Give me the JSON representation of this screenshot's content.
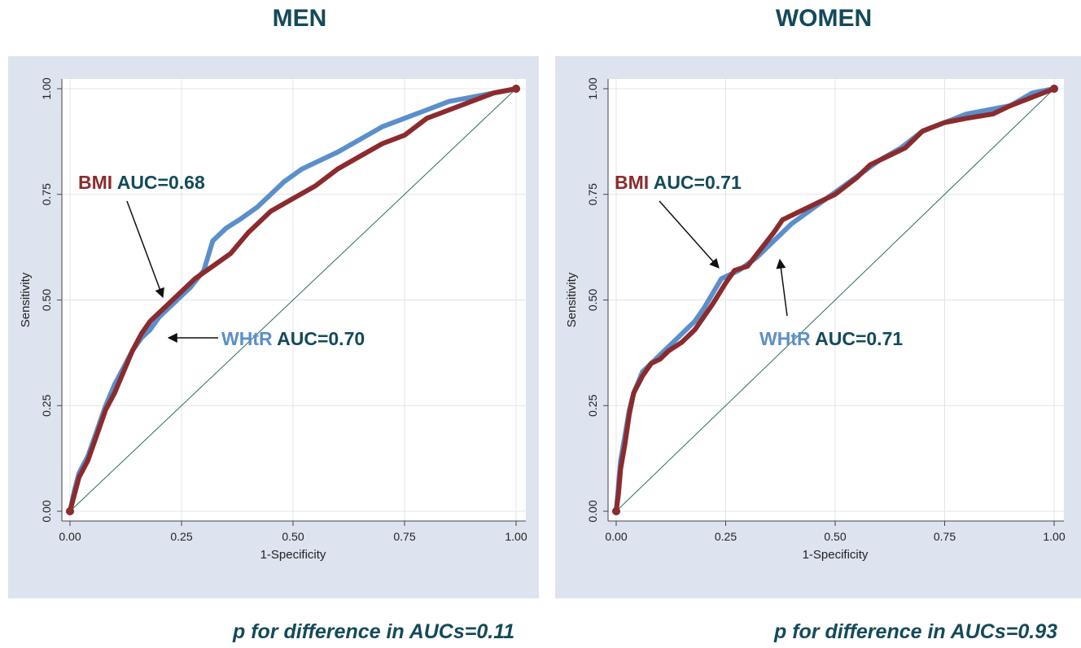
{
  "colors": {
    "bmi": "#8b2b2e",
    "whtr": "#5b8fcb",
    "auc_text": "#134a5a",
    "title": "#134a5a",
    "panel_bg": "#dde3ef",
    "reference": "#2e6b5e"
  },
  "chart_data": [
    {
      "type": "line",
      "title": "MEN",
      "xlabel": "1-Specificity",
      "ylabel": "Sensitivity",
      "xlim": [
        0,
        1
      ],
      "ylim": [
        0,
        1
      ],
      "xticks": [
        "0.00",
        "0.25",
        "0.50",
        "0.75",
        "1.00"
      ],
      "yticks": [
        "0.00",
        "0.25",
        "0.50",
        "0.75",
        "1.00"
      ],
      "grid": true,
      "reference_line": [
        [
          0,
          0
        ],
        [
          1,
          1
        ]
      ],
      "annotations": {
        "bmi": {
          "name": "BMI",
          "text": "AUC=0.68"
        },
        "whtr": {
          "name": "WHtR",
          "text": "AUC=0.70"
        }
      },
      "note": "p for difference in AUCs=0.11",
      "series": [
        {
          "name": "WHtR",
          "color": "#5b8fcb",
          "points": [
            [
              0,
              0
            ],
            [
              0.01,
              0.05
            ],
            [
              0.02,
              0.09
            ],
            [
              0.04,
              0.13
            ],
            [
              0.05,
              0.16
            ],
            [
              0.06,
              0.19
            ],
            [
              0.08,
              0.25
            ],
            [
              0.1,
              0.3
            ],
            [
              0.12,
              0.34
            ],
            [
              0.14,
              0.38
            ],
            [
              0.16,
              0.41
            ],
            [
              0.18,
              0.43
            ],
            [
              0.2,
              0.46
            ],
            [
              0.22,
              0.48
            ],
            [
              0.25,
              0.51
            ],
            [
              0.27,
              0.53
            ],
            [
              0.3,
              0.57
            ],
            [
              0.32,
              0.64
            ],
            [
              0.35,
              0.67
            ],
            [
              0.38,
              0.69
            ],
            [
              0.42,
              0.72
            ],
            [
              0.45,
              0.75
            ],
            [
              0.48,
              0.78
            ],
            [
              0.52,
              0.81
            ],
            [
              0.56,
              0.83
            ],
            [
              0.6,
              0.85
            ],
            [
              0.65,
              0.88
            ],
            [
              0.7,
              0.91
            ],
            [
              0.75,
              0.93
            ],
            [
              0.8,
              0.95
            ],
            [
              0.85,
              0.97
            ],
            [
              0.9,
              0.98
            ],
            [
              0.95,
              0.99
            ],
            [
              1,
              1
            ]
          ]
        },
        {
          "name": "BMI",
          "color": "#8b2b2e",
          "points": [
            [
              0,
              0
            ],
            [
              0.01,
              0.04
            ],
            [
              0.02,
              0.08
            ],
            [
              0.04,
              0.12
            ],
            [
              0.05,
              0.15
            ],
            [
              0.06,
              0.18
            ],
            [
              0.08,
              0.24
            ],
            [
              0.1,
              0.28
            ],
            [
              0.12,
              0.33
            ],
            [
              0.14,
              0.38
            ],
            [
              0.16,
              0.42
            ],
            [
              0.18,
              0.45
            ],
            [
              0.2,
              0.47
            ],
            [
              0.22,
              0.49
            ],
            [
              0.25,
              0.52
            ],
            [
              0.28,
              0.55
            ],
            [
              0.32,
              0.58
            ],
            [
              0.36,
              0.61
            ],
            [
              0.4,
              0.66
            ],
            [
              0.45,
              0.71
            ],
            [
              0.5,
              0.74
            ],
            [
              0.55,
              0.77
            ],
            [
              0.6,
              0.81
            ],
            [
              0.65,
              0.84
            ],
            [
              0.7,
              0.87
            ],
            [
              0.75,
              0.89
            ],
            [
              0.8,
              0.93
            ],
            [
              0.85,
              0.95
            ],
            [
              0.9,
              0.97
            ],
            [
              0.95,
              0.99
            ],
            [
              1,
              1
            ]
          ]
        }
      ]
    },
    {
      "type": "line",
      "title": "WOMEN",
      "xlabel": "1-Specificity",
      "ylabel": "Sensitivity",
      "xlim": [
        0,
        1
      ],
      "ylim": [
        0,
        1
      ],
      "xticks": [
        "0.00",
        "0.25",
        "0.50",
        "0.75",
        "1.00"
      ],
      "yticks": [
        "0.00",
        "0.25",
        "0.50",
        "0.75",
        "1.00"
      ],
      "grid": true,
      "reference_line": [
        [
          0,
          0
        ],
        [
          1,
          1
        ]
      ],
      "annotations": {
        "bmi": {
          "name": "BMI",
          "text": "AUC=0.71"
        },
        "whtr": {
          "name": "WHtR",
          "text": "AUC=0.71"
        }
      },
      "note": "p for difference in AUCs=0.93",
      "series": [
        {
          "name": "WHtR",
          "color": "#5b8fcb",
          "points": [
            [
              0,
              0
            ],
            [
              0.005,
              0.06
            ],
            [
              0.01,
              0.12
            ],
            [
              0.02,
              0.18
            ],
            [
              0.03,
              0.24
            ],
            [
              0.04,
              0.28
            ],
            [
              0.06,
              0.33
            ],
            [
              0.08,
              0.35
            ],
            [
              0.1,
              0.37
            ],
            [
              0.12,
              0.39
            ],
            [
              0.15,
              0.42
            ],
            [
              0.18,
              0.45
            ],
            [
              0.2,
              0.48
            ],
            [
              0.24,
              0.55
            ],
            [
              0.28,
              0.57
            ],
            [
              0.32,
              0.6
            ],
            [
              0.36,
              0.64
            ],
            [
              0.4,
              0.68
            ],
            [
              0.44,
              0.71
            ],
            [
              0.48,
              0.74
            ],
            [
              0.52,
              0.77
            ],
            [
              0.56,
              0.8
            ],
            [
              0.6,
              0.83
            ],
            [
              0.65,
              0.86
            ],
            [
              0.7,
              0.9
            ],
            [
              0.75,
              0.92
            ],
            [
              0.8,
              0.94
            ],
            [
              0.85,
              0.95
            ],
            [
              0.9,
              0.96
            ],
            [
              0.95,
              0.99
            ],
            [
              1,
              1
            ]
          ]
        },
        {
          "name": "BMI",
          "color": "#8b2b2e",
          "points": [
            [
              0,
              0
            ],
            [
              0.005,
              0.04
            ],
            [
              0.01,
              0.1
            ],
            [
              0.02,
              0.16
            ],
            [
              0.03,
              0.23
            ],
            [
              0.04,
              0.28
            ],
            [
              0.06,
              0.32
            ],
            [
              0.08,
              0.35
            ],
            [
              0.1,
              0.36
            ],
            [
              0.12,
              0.38
            ],
            [
              0.15,
              0.4
            ],
            [
              0.18,
              0.43
            ],
            [
              0.22,
              0.49
            ],
            [
              0.25,
              0.54
            ],
            [
              0.27,
              0.57
            ],
            [
              0.3,
              0.58
            ],
            [
              0.33,
              0.62
            ],
            [
              0.36,
              0.66
            ],
            [
              0.38,
              0.69
            ],
            [
              0.42,
              0.71
            ],
            [
              0.46,
              0.73
            ],
            [
              0.5,
              0.75
            ],
            [
              0.55,
              0.79
            ],
            [
              0.58,
              0.82
            ],
            [
              0.62,
              0.84
            ],
            [
              0.66,
              0.86
            ],
            [
              0.7,
              0.9
            ],
            [
              0.75,
              0.92
            ],
            [
              0.8,
              0.93
            ],
            [
              0.86,
              0.94
            ],
            [
              0.9,
              0.96
            ],
            [
              0.95,
              0.98
            ],
            [
              1,
              1
            ]
          ]
        }
      ]
    }
  ]
}
